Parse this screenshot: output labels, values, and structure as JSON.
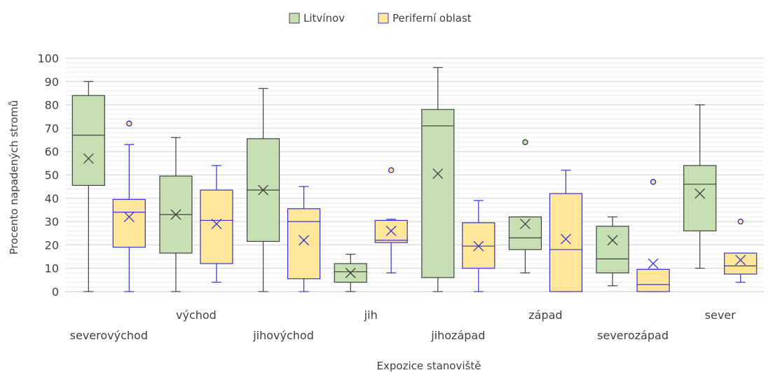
{
  "chart_data": {
    "type": "boxplot",
    "xlabel": "Expozice stanoviště",
    "ylabel": "Procento napadených stromů",
    "ylim": [
      0,
      100
    ],
    "yticks": [
      0,
      10,
      20,
      30,
      40,
      50,
      60,
      70,
      80,
      90,
      100
    ],
    "grid": true,
    "legend_position": "top",
    "categories": [
      "severovýchod",
      "východ",
      "jihovýchod",
      "jih",
      "jihozápad",
      "západ",
      "severozápad",
      "sever"
    ],
    "series": [
      {
        "name": "Litvínov",
        "fill": "#c6e0b4",
        "stroke": "#404040",
        "boxes": [
          {
            "min": 0,
            "q1": 45.5,
            "median": 67,
            "q3": 84,
            "max": 90,
            "mean": 57,
            "outliers": []
          },
          {
            "min": 0,
            "q1": 16.5,
            "median": 33,
            "q3": 49.5,
            "max": 66,
            "mean": 33,
            "outliers": []
          },
          {
            "min": 0,
            "q1": 21.5,
            "median": 43.5,
            "q3": 65.5,
            "max": 87,
            "mean": 43.5,
            "outliers": []
          },
          {
            "min": 0,
            "q1": 4,
            "median": 8.5,
            "q3": 12,
            "max": 16,
            "mean": 8,
            "outliers": []
          },
          {
            "min": 0,
            "q1": 6,
            "median": 71,
            "q3": 78,
            "max": 96,
            "mean": 50.5,
            "outliers": []
          },
          {
            "min": 8,
            "q1": 18,
            "median": 23,
            "q3": 32,
            "max": 32,
            "mean": 29,
            "outliers": [
              64
            ]
          },
          {
            "min": 2.5,
            "q1": 8,
            "median": 14,
            "q3": 28,
            "max": 32,
            "mean": 22,
            "outliers": []
          },
          {
            "min": 10,
            "q1": 26,
            "median": 46,
            "q3": 54,
            "max": 80,
            "mean": 42,
            "outliers": []
          }
        ]
      },
      {
        "name": "Periferní oblast",
        "fill": "#ffe699",
        "stroke": "#3333cc",
        "boxes": [
          {
            "min": 0,
            "q1": 19,
            "median": 34,
            "q3": 39.5,
            "max": 63,
            "mean": 32,
            "outliers": [
              72
            ]
          },
          {
            "min": 4,
            "q1": 12,
            "median": 30.5,
            "q3": 43.5,
            "max": 54,
            "mean": 29,
            "outliers": []
          },
          {
            "min": 0,
            "q1": 5.5,
            "median": 30,
            "q3": 35.5,
            "max": 45,
            "mean": 22,
            "outliers": []
          },
          {
            "min": 8,
            "q1": 21,
            "median": 22,
            "q3": 30.5,
            "max": 31,
            "mean": 26,
            "outliers": [
              52
            ]
          },
          {
            "min": 0,
            "q1": 10,
            "median": 19.5,
            "q3": 29.5,
            "max": 39,
            "mean": 19.5,
            "outliers": []
          },
          {
            "min": 0,
            "q1": 0,
            "median": 18,
            "q3": 42,
            "max": 52,
            "mean": 22.5,
            "outliers": []
          },
          {
            "min": 0,
            "q1": 0,
            "median": 3,
            "q3": 9.5,
            "max": 9.5,
            "mean": 12,
            "outliers": [
              47
            ]
          },
          {
            "min": 4,
            "q1": 7.5,
            "median": 11,
            "q3": 16.5,
            "max": 16.5,
            "mean": 13.5,
            "outliers": [
              30
            ]
          }
        ]
      }
    ]
  }
}
